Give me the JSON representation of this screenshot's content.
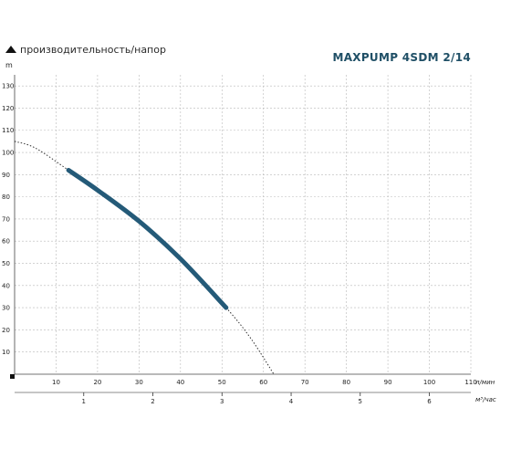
{
  "header": {
    "caption": "производительность/напор",
    "model_title": "MAXPUMP 4SDM 2/14"
  },
  "chart_data": {
    "type": "line",
    "title": "MAXPUMP 4SDM 2/14",
    "ylabel": "m",
    "xlabel": "л/мин",
    "xlabel_secondary": "м³/час",
    "xlim": [
      0,
      110
    ],
    "ylim": [
      0,
      135
    ],
    "x_ticks": [
      "10",
      "20",
      "30",
      "40",
      "50",
      "60",
      "70",
      "80",
      "90",
      "100",
      "110"
    ],
    "y_ticks": [
      "10",
      "20",
      "30",
      "40",
      "50",
      "60",
      "70",
      "80",
      "90",
      "100",
      "110",
      "120",
      "130"
    ],
    "x2_ticks": [
      {
        "label": "1",
        "lpm": 16.67
      },
      {
        "label": "2",
        "lpm": 33.33
      },
      {
        "label": "3",
        "lpm": 50
      },
      {
        "label": "4",
        "lpm": 66.67
      },
      {
        "label": "5",
        "lpm": 83.33
      },
      {
        "label": "6",
        "lpm": 100
      }
    ],
    "grid": true,
    "series": [
      {
        "style": "dotted",
        "color": "#333333",
        "x": [
          0,
          5,
          13,
          20,
          30,
          40,
          51,
          57,
          62.5
        ],
        "y": [
          105,
          102,
          92,
          83,
          69,
          52,
          30,
          16,
          0
        ]
      },
      {
        "style": "solid",
        "color": "#245a78",
        "x": [
          13,
          20,
          30,
          40,
          51
        ],
        "y": [
          92,
          83,
          69,
          52,
          30
        ]
      }
    ]
  }
}
